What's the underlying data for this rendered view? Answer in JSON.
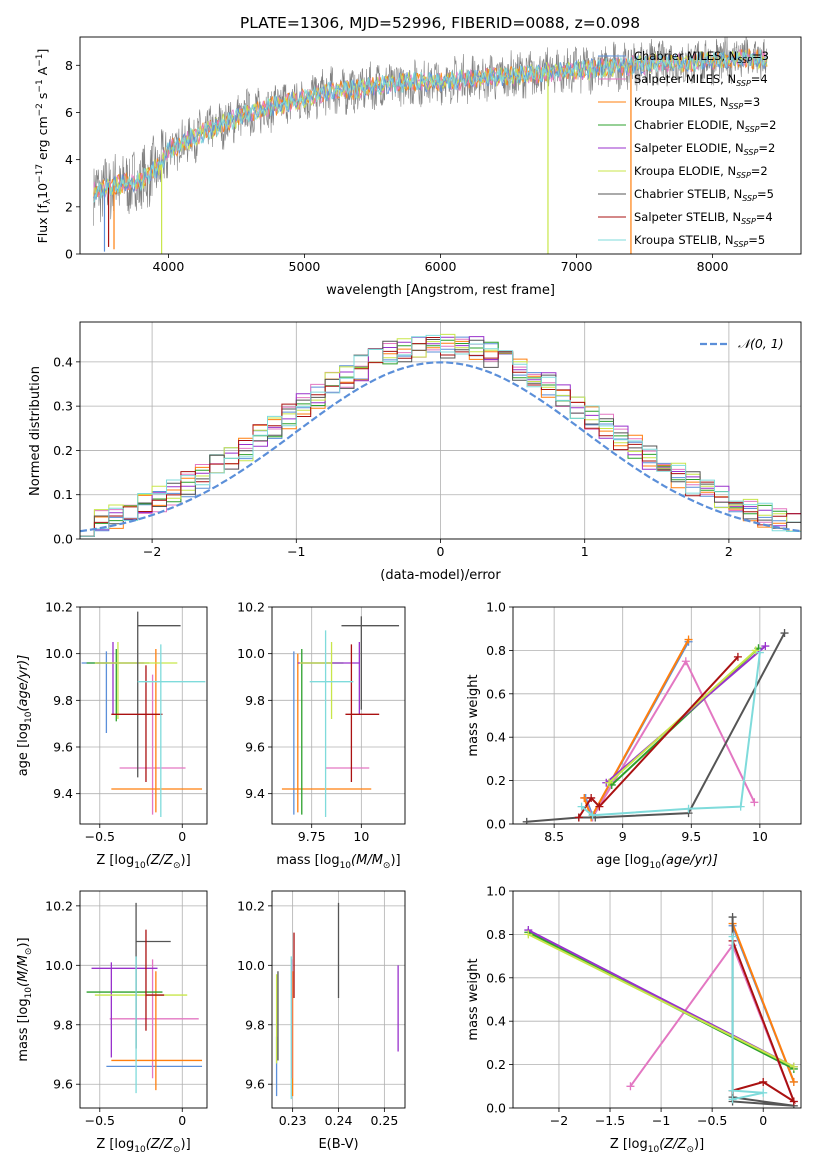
{
  "colors": {
    "chabrier_miles": "#5b8fd9",
    "salpeter_miles": "#e377c2",
    "kroupa_miles": "#ff7f0e",
    "chabrier_elodie": "#2ca02c",
    "salpeter_elodie": "#9932cc",
    "kroupa_elodie": "#c8e64a",
    "chabrier_stelib": "#555555",
    "salpeter_stelib": "#aa1111",
    "kroupa_stelib": "#7fdbdb",
    "normal_fit": "#5b8fd9",
    "data_spectrum": "#808080",
    "grid": "#b0b0b0"
  },
  "models": [
    {
      "key": "chabrier_miles",
      "label": "Chabrier MILES, N",
      "nssp": "=3"
    },
    {
      "key": "salpeter_miles",
      "label": "Salpeter MILES, N",
      "nssp": "=4"
    },
    {
      "key": "kroupa_miles",
      "label": "Kroupa MILES, N",
      "nssp": "=3"
    },
    {
      "key": "chabrier_elodie",
      "label": "Chabrier ELODIE, N",
      "nssp": "=2"
    },
    {
      "key": "salpeter_elodie",
      "label": "Salpeter ELODIE, N",
      "nssp": "=2"
    },
    {
      "key": "kroupa_elodie",
      "label": "Kroupa ELODIE, N",
      "nssp": "=2"
    },
    {
      "key": "chabrier_stelib",
      "label": "Chabrier STELIB, N",
      "nssp": "=5"
    },
    {
      "key": "salpeter_stelib",
      "label": "Salpeter STELIB, N",
      "nssp": "=4"
    },
    {
      "key": "kroupa_stelib",
      "label": "Kroupa STELIB, N",
      "nssp": "=5"
    }
  ],
  "chart_data": [
    {
      "id": "spectrum",
      "type": "line",
      "title": "PLATE=1306, MJD=52996, FIBERID=0088, z=0.098",
      "xlabel": "wavelength [Angstrom, rest frame]",
      "ylabel": "Flux [f",
      "ylabel_sub": "λ",
      "ylabel_rest": "10",
      "ylabel_exp": "−17",
      "ylabel_units": " erg cm",
      "ylabel_units_exp": "−2",
      "ylabel_units2": " s",
      "ylabel_units2_exp": "−1",
      "ylabel_units3": " A",
      "ylabel_units3_exp": "−1",
      "ylabel_end": "]",
      "xlim": [
        3350,
        8650
      ],
      "ylim": [
        0,
        9.2
      ],
      "xticks": [
        4000,
        5000,
        6000,
        7000,
        8000
      ],
      "yticks": [
        0,
        2,
        4,
        6,
        8
      ],
      "continuum_x": [
        3450,
        3600,
        3800,
        3950,
        4000,
        4200,
        4400,
        4600,
        4800,
        5000,
        5200,
        5400,
        5600,
        5800,
        6000,
        6200,
        6400,
        6600,
        6800,
        7000,
        7200,
        7400,
        7600,
        7800,
        8000,
        8200,
        8400
      ],
      "continuum_y": [
        2.6,
        2.9,
        3.1,
        3.8,
        4.4,
        5.0,
        5.5,
        6.0,
        6.3,
        6.6,
        6.9,
        7.0,
        7.2,
        7.3,
        7.3,
        7.4,
        7.5,
        7.6,
        7.7,
        7.8,
        7.9,
        8.0,
        8.1,
        8.1,
        8.2,
        8.3,
        8.2
      ],
      "dips": [
        {
          "x": 3530,
          "y": 0.1,
          "color": "chabrier_miles"
        },
        {
          "x": 3560,
          "y": 0.3,
          "color": "salpeter_stelib"
        },
        {
          "x": 3600,
          "y": 0.2,
          "color": "kroupa_miles"
        },
        {
          "x": 3950,
          "y": 0.0,
          "color": "kroupa_elodie"
        },
        {
          "x": 6790,
          "y": 0.0,
          "color": "kroupa_elodie"
        },
        {
          "x": 7400,
          "y": 0.0,
          "color": "kroupa_miles"
        }
      ]
    },
    {
      "id": "residuals",
      "type": "histogram",
      "xlabel": "(data-model)/error",
      "ylabel": "Normed distribution",
      "xlim": [
        -2.5,
        2.5
      ],
      "ylim": [
        0,
        0.49
      ],
      "xticks": [
        -2,
        -1,
        0,
        1,
        2
      ],
      "yticks": [
        0.0,
        0.1,
        0.2,
        0.3,
        0.4
      ],
      "legend": "𝒩(0, 1)",
      "bin_width": 0.1,
      "bin_start": -2.5,
      "reference_curve": "normal(0,1)"
    },
    {
      "id": "age_vs_z",
      "type": "errorbar",
      "xlabel": "Z [log",
      "xlabel_sub": "10",
      "xlabel_rest": "(Z/Z",
      "xlabel_sun": "⊙",
      "xlabel_end": ")]",
      "ylabel": "age  [log",
      "ylabel_sub": "10",
      "ylabel_rest": "(age/yr)]",
      "xlim": [
        -0.62,
        0.15
      ],
      "ylim": [
        9.27,
        10.2
      ],
      "xticks": [
        -0.5,
        0.0
      ],
      "yticks": [
        9.4,
        9.6,
        9.8,
        10.0,
        10.2
      ],
      "points": [
        {
          "model": "chabrier_miles",
          "x": -0.46,
          "y": 9.96,
          "xerr": [
            0.15,
            0.0
          ],
          "yerr": [
            0.3,
            0.05
          ]
        },
        {
          "model": "salpeter_miles",
          "x": -0.18,
          "y": 9.51,
          "xerr": [
            0.2,
            0.2
          ],
          "yerr": [
            0.2,
            0.4
          ]
        },
        {
          "model": "kroupa_miles",
          "x": -0.16,
          "y": 9.42,
          "xerr": [
            0.27,
            0.28
          ],
          "yerr": [
            0.1,
            0.6
          ]
        },
        {
          "model": "chabrier_elodie",
          "x": -0.4,
          "y": 9.96,
          "xerr": [
            0.18,
            0.2
          ],
          "yerr": [
            0.25,
            0.06
          ]
        },
        {
          "model": "salpeter_elodie",
          "x": -0.42,
          "y": 9.96,
          "xerr": [
            0.1,
            0.19
          ],
          "yerr": [
            0.22,
            0.09
          ]
        },
        {
          "model": "kroupa_elodie",
          "x": -0.39,
          "y": 9.96,
          "xerr": [
            0.14,
            0.36
          ],
          "yerr": [
            0.24,
            0.09
          ]
        },
        {
          "model": "chabrier_stelib",
          "x": -0.27,
          "y": 10.12,
          "xerr": [
            0.0,
            0.26
          ],
          "yerr": [
            0.65,
            0.06
          ]
        },
        {
          "model": "salpeter_stelib",
          "x": -0.22,
          "y": 9.74,
          "xerr": [
            0.21,
            0.1
          ],
          "yerr": [
            0.29,
            0.21
          ]
        },
        {
          "model": "kroupa_stelib",
          "x": -0.13,
          "y": 9.88,
          "xerr": [
            0.14,
            0.27
          ],
          "yerr": [
            0.58,
            0.16
          ]
        }
      ]
    },
    {
      "id": "age_vs_mass",
      "type": "errorbar",
      "xlabel": "mass [log",
      "xlabel_sub": "10",
      "xlabel_rest": "(M/M",
      "xlabel_sun": "⊙",
      "xlabel_end": ")]",
      "xlim": [
        9.55,
        10.22
      ],
      "ylim": [
        9.27,
        10.2
      ],
      "xticks": [
        9.75,
        10.0
      ],
      "yticks": [
        9.4,
        9.6,
        9.8,
        10.0,
        10.2
      ],
      "points": [
        {
          "model": "chabrier_miles",
          "x": 9.66,
          "y": 9.96,
          "xerr": [
            0.0,
            0.0
          ],
          "yerr": [
            0.65,
            0.05
          ]
        },
        {
          "model": "salpeter_miles",
          "x": 9.82,
          "y": 9.51,
          "xerr": [
            0.0,
            0.22
          ],
          "yerr": [
            0.0,
            0.0
          ]
        },
        {
          "model": "kroupa_miles",
          "x": 9.68,
          "y": 9.42,
          "xerr": [
            0.08,
            0.37
          ],
          "yerr": [
            0.1,
            0.58
          ]
        },
        {
          "model": "chabrier_elodie",
          "x": 9.7,
          "y": 9.96,
          "xerr": [
            0.0,
            0.21
          ],
          "yerr": [
            0.65,
            0.06
          ]
        },
        {
          "model": "salpeter_elodie",
          "x": 9.99,
          "y": 9.96,
          "xerr": [
            0.31,
            0.0
          ],
          "yerr": [
            0.22,
            0.09
          ]
        },
        {
          "model": "kroupa_elodie",
          "x": 9.85,
          "y": 9.96,
          "xerr": [
            0.16,
            0.0
          ],
          "yerr": [
            0.24,
            0.09
          ]
        },
        {
          "model": "chabrier_stelib",
          "x": 10.0,
          "y": 10.12,
          "xerr": [
            0.1,
            0.19
          ],
          "yerr": [
            0.36,
            0.04
          ]
        },
        {
          "model": "salpeter_stelib",
          "x": 9.95,
          "y": 9.74,
          "xerr": [
            0.03,
            0.14
          ],
          "yerr": [
            0.29,
            0.3
          ]
        },
        {
          "model": "kroupa_stelib",
          "x": 9.82,
          "y": 9.88,
          "xerr": [
            0.08,
            0.14
          ],
          "yerr": [
            0.58,
            0.22
          ]
        }
      ]
    },
    {
      "id": "weight_vs_age",
      "type": "line",
      "xlabel": "age  [log",
      "xlabel_sub": "10",
      "xlabel_rest": "(age/yr)]",
      "ylabel": "mass weight",
      "xlim": [
        8.2,
        10.3
      ],
      "ylim": [
        0.0,
        1.0
      ],
      "xticks": [
        8.5,
        9.0,
        9.5,
        10.0
      ],
      "yticks": [
        0.0,
        0.2,
        0.4,
        0.6,
        0.8,
        1.0
      ],
      "series": [
        {
          "model": "chabrier_miles",
          "x": [
            8.73,
            8.78,
            9.48
          ],
          "y": [
            0.12,
            0.04,
            0.84
          ]
        },
        {
          "model": "salpeter_miles",
          "x": [
            8.72,
            8.78,
            9.46,
            9.96
          ],
          "y": [
            0.12,
            0.03,
            0.75,
            0.1
          ]
        },
        {
          "model": "kroupa_miles",
          "x": [
            8.72,
            8.77,
            9.48
          ],
          "y": [
            0.12,
            0.03,
            0.85
          ]
        },
        {
          "model": "chabrier_elodie",
          "x": [
            8.92,
            9.99
          ],
          "y": [
            0.18,
            0.81
          ]
        },
        {
          "model": "salpeter_elodie",
          "x": [
            8.88,
            10.04
          ],
          "y": [
            0.19,
            0.82
          ]
        },
        {
          "model": "kroupa_elodie",
          "x": [
            8.9,
            9.97
          ],
          "y": [
            0.19,
            0.8
          ]
        },
        {
          "model": "chabrier_stelib",
          "x": [
            8.3,
            8.68,
            8.8,
            9.48,
            10.18
          ],
          "y": [
            0.01,
            0.03,
            0.03,
            0.05,
            0.88
          ]
        },
        {
          "model": "salpeter_stelib",
          "x": [
            8.68,
            8.77,
            8.83,
            9.84
          ],
          "y": [
            0.03,
            0.12,
            0.08,
            0.77
          ]
        },
        {
          "model": "kroupa_stelib",
          "x": [
            8.7,
            8.78,
            9.48,
            9.86,
            10.0
          ],
          "y": [
            0.08,
            0.04,
            0.07,
            0.08,
            0.79
          ]
        }
      ]
    },
    {
      "id": "mass_vs_z",
      "type": "errorbar",
      "xlabel": "Z [log",
      "xlabel_sub": "10",
      "xlabel_rest": "(Z/Z",
      "xlabel_sun": "⊙",
      "xlabel_end": ")]",
      "ylabel": "mass [log",
      "ylabel_sub": "10",
      "ylabel_rest": "(M/M",
      "ylabel_sun": "⊙",
      "ylabel_end": ")]",
      "xlim": [
        -0.62,
        0.15
      ],
      "ylim": [
        9.52,
        10.25
      ],
      "xticks": [
        -0.5,
        0.0
      ],
      "yticks": [
        9.6,
        9.8,
        10.0,
        10.2
      ],
      "points": [
        {
          "model": "chabrier_miles",
          "x": -0.46,
          "y": 9.66,
          "xerr": [
            0.0,
            0.58
          ],
          "yerr": [
            0.0,
            0.0
          ]
        },
        {
          "model": "salpeter_miles",
          "x": -0.18,
          "y": 9.82,
          "xerr": [
            0.26,
            0.28
          ],
          "yerr": [
            0.2,
            0.2
          ]
        },
        {
          "model": "kroupa_miles",
          "x": -0.16,
          "y": 9.68,
          "xerr": [
            0.27,
            0.28
          ],
          "yerr": [
            0.1,
            0.3
          ]
        },
        {
          "model": "chabrier_elodie",
          "x": -0.4,
          "y": 9.91,
          "xerr": [
            0.18,
            0.28
          ],
          "yerr": [
            0.0,
            0.0
          ]
        },
        {
          "model": "salpeter_elodie",
          "x": -0.43,
          "y": 9.99,
          "xerr": [
            0.12,
            0.28
          ],
          "yerr": [
            0.3,
            0.02
          ]
        },
        {
          "model": "kroupa_elodie",
          "x": -0.39,
          "y": 9.9,
          "xerr": [
            0.14,
            0.42
          ],
          "yerr": [
            0.0,
            0.0
          ]
        },
        {
          "model": "chabrier_stelib",
          "x": -0.28,
          "y": 10.08,
          "xerr": [
            0.0,
            0.21
          ],
          "yerr": [
            0.36,
            0.13
          ]
        },
        {
          "model": "salpeter_stelib",
          "x": -0.22,
          "y": 9.9,
          "xerr": [
            0.0,
            0.11
          ],
          "yerr": [
            0.12,
            0.22
          ]
        },
        {
          "model": "kroupa_stelib",
          "x": -0.28,
          "y": 9.97,
          "xerr": [
            0.0,
            0.0
          ],
          "yerr": [
            0.4,
            0.06
          ]
        }
      ]
    },
    {
      "id": "mass_vs_ebv",
      "type": "errorbar",
      "xlabel": "E(B-V)",
      "xlim": [
        0.2255,
        0.2545
      ],
      "ylim": [
        9.52,
        10.25
      ],
      "xticks": [
        0.23,
        0.24,
        0.25
      ],
      "yticks": [
        9.6,
        9.8,
        10.0,
        10.2
      ],
      "points": [
        {
          "model": "chabrier_miles",
          "x": 0.2265,
          "y": 9.66,
          "xerr": [
            0,
            0
          ],
          "yerr": [
            0.1,
            0.1
          ]
        },
        {
          "model": "kroupa_elodie",
          "x": 0.2265,
          "y": 9.82,
          "xerr": [
            0,
            0
          ],
          "yerr": [
            0.15,
            0.15
          ]
        },
        {
          "model": "chabrier_stelib",
          "x": 0.2268,
          "y": 9.85,
          "xerr": [
            0,
            0
          ],
          "yerr": [
            0.17,
            0.13
          ]
        },
        {
          "model": "kroupa_miles",
          "x": 0.23,
          "y": 9.68,
          "xerr": [
            0,
            0
          ],
          "yerr": [
            0.12,
            0.3
          ]
        },
        {
          "model": "salpeter_stelib",
          "x": 0.2303,
          "y": 9.99,
          "xerr": [
            0,
            0
          ],
          "yerr": [
            0.1,
            0.12
          ]
        },
        {
          "model": "salpeter_miles",
          "x": 0.2298,
          "y": 9.82,
          "xerr": [
            0,
            0
          ],
          "yerr": [
            0.2,
            0.2
          ]
        },
        {
          "model": "kroupa_stelib",
          "x": 0.2297,
          "y": 9.87,
          "xerr": [
            0,
            0
          ],
          "yerr": [
            0.32,
            0.16
          ]
        },
        {
          "model": "chabrier_stelib",
          "x": 0.24,
          "y": 10.05,
          "xerr": [
            0,
            0
          ],
          "yerr": [
            0.16,
            0.16
          ]
        },
        {
          "model": "salpeter_elodie",
          "x": 0.253,
          "y": 9.86,
          "xerr": [
            0,
            0
          ],
          "yerr": [
            0.15,
            0.14
          ]
        }
      ]
    },
    {
      "id": "weight_vs_z",
      "type": "line",
      "xlabel": "Z [log",
      "xlabel_sub": "10",
      "xlabel_rest": "(Z/Z",
      "xlabel_sun": "⊙",
      "xlabel_end": ")]",
      "ylabel": "mass weight",
      "xlim": [
        -2.45,
        0.37
      ],
      "ylim": [
        0.0,
        1.0
      ],
      "xticks": [
        -2.0,
        -1.5,
        -1.0,
        -0.5,
        0.0
      ],
      "yticks": [
        0.0,
        0.2,
        0.4,
        0.6,
        0.8,
        1.0
      ],
      "series": [
        {
          "model": "chabrier_miles",
          "x": [
            -0.3,
            0.3
          ],
          "y": [
            0.84,
            0.12
          ]
        },
        {
          "model": "salpeter_miles",
          "x": [
            -1.3,
            -0.3,
            0.3
          ],
          "y": [
            0.1,
            0.75,
            0.03
          ]
        },
        {
          "model": "kroupa_miles",
          "x": [
            -0.3,
            0.3
          ],
          "y": [
            0.85,
            0.12
          ]
        },
        {
          "model": "chabrier_elodie",
          "x": [
            -2.3,
            0.3
          ],
          "y": [
            0.81,
            0.18
          ]
        },
        {
          "model": "salpeter_elodie",
          "x": [
            -2.3,
            0.3
          ],
          "y": [
            0.82,
            0.19
          ]
        },
        {
          "model": "kroupa_elodie",
          "x": [
            -2.3,
            0.3
          ],
          "y": [
            0.8,
            0.19
          ]
        },
        {
          "model": "chabrier_stelib",
          "x": [
            -0.3,
            -0.3,
            0.3,
            -0.3
          ],
          "y": [
            0.88,
            0.03,
            0.01,
            0.05
          ]
        },
        {
          "model": "salpeter_stelib",
          "x": [
            -0.3,
            0.0,
            0.3,
            -0.3
          ],
          "y": [
            0.08,
            0.12,
            0.03,
            0.77
          ]
        },
        {
          "model": "kroupa_stelib",
          "x": [
            -0.3,
            -0.3,
            0.0,
            -0.3
          ],
          "y": [
            0.79,
            0.08,
            0.07,
            0.04
          ]
        }
      ]
    }
  ]
}
